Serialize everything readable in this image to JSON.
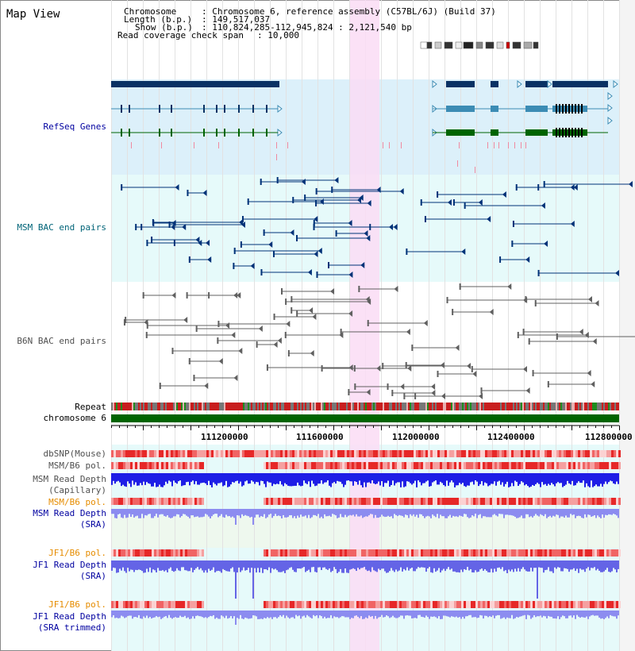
{
  "view": {
    "title": "Map View",
    "chromosome_label": "Chromosome",
    "chromosome_value": ": Chromosome 6, reference assembly (C57BL/6J) (Build 37)",
    "length_label": "Length (b.p.)",
    "length_value": ": 149,517,037",
    "show_label": "Show (b.p.)",
    "show_value": ": 110,824,285-112,945,824 : 2,121,540 bp",
    "coverage_label": "Read coverage check span",
    "coverage_value": ": 10,000"
  },
  "tracks": {
    "refseq": "RefSeq Genes",
    "msm_bac": "MSM BAC end pairs",
    "b6n_bac": "B6N BAC end pairs",
    "repeat": "Repeat",
    "chromosome": "chromosome 6",
    "dbsnp": "dbSNP(Mouse)",
    "msm_pol_1": "MSM/B6 pol.",
    "msm_depth_cap_1": "MSM Read Depth",
    "msm_depth_cap_2": "(Capillary)",
    "msm_pol_2": "MSM/B6 pol.",
    "msm_depth_sra_1": "MSM Read Depth",
    "msm_depth_sra_2": "(SRA)",
    "jf1_pol_1": "JF1/B6 pol.",
    "jf1_depth_sra_1": "JF1 Read Depth",
    "jf1_depth_sra_2": "(SRA)",
    "jf1_pol_2": "JF1/B6 pol.",
    "jf1_depth_trim_1": "JF1 Read Depth",
    "jf1_depth_trim_2": "(SRA trimmed)"
  },
  "axis": {
    "ticks": [
      "111200000",
      "111600000",
      "112000000",
      "112400000",
      "112800000"
    ]
  },
  "colors": {
    "refseq_bg": "#dcf0fa",
    "bac_bg": "#e6fafa",
    "highlight": "#fadcf5",
    "gene_dark": "#0a3264",
    "gene_teal": "#3c8cb4",
    "gene_green": "#006400",
    "msm_blue": "#003278",
    "msm_label": "#006478",
    "b6n_label": "#505050",
    "pol_red": "#e62828",
    "depth_blue": "#1e1ee6",
    "depth_light": "#8c8cf0",
    "orange_label": "#e68c00",
    "navy_label": "#0000a0"
  }
}
